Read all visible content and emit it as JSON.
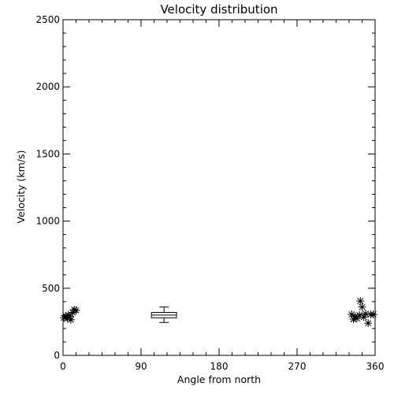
{
  "chart_data": {
    "type": "scatter",
    "title": "Velocity distribution",
    "xlabel": "Angle from north",
    "ylabel": "Velocity (km/s)",
    "xlim": [
      0,
      360
    ],
    "ylim": [
      0,
      2500
    ],
    "xticks": [
      0,
      90,
      180,
      270,
      360
    ],
    "yticks": [
      0,
      500,
      1000,
      1500,
      2000,
      2500
    ],
    "grid": false,
    "marker": "asterisk",
    "color": "#000000",
    "points": [
      {
        "x": 1,
        "y": 280
      },
      {
        "x": 3,
        "y": 295
      },
      {
        "x": 5,
        "y": 275
      },
      {
        "x": 6,
        "y": 300
      },
      {
        "x": 8,
        "y": 290
      },
      {
        "x": 9,
        "y": 265
      },
      {
        "x": 11,
        "y": 320
      },
      {
        "x": 13,
        "y": 340
      },
      {
        "x": 15,
        "y": 335
      },
      {
        "x": 333,
        "y": 305
      },
      {
        "x": 335,
        "y": 270
      },
      {
        "x": 337,
        "y": 290
      },
      {
        "x": 339,
        "y": 275
      },
      {
        "x": 342,
        "y": 300
      },
      {
        "x": 343,
        "y": 405
      },
      {
        "x": 345,
        "y": 360
      },
      {
        "x": 347,
        "y": 285
      },
      {
        "x": 349,
        "y": 310
      },
      {
        "x": 352,
        "y": 240
      },
      {
        "x": 355,
        "y": 305
      },
      {
        "x": 358,
        "y": 305
      }
    ],
    "boxplot": {
      "x_min": 102,
      "x_max": 131,
      "whisker_low": 245,
      "q1": 280,
      "median": 300,
      "q3": 320,
      "whisker_high": 360
    }
  }
}
